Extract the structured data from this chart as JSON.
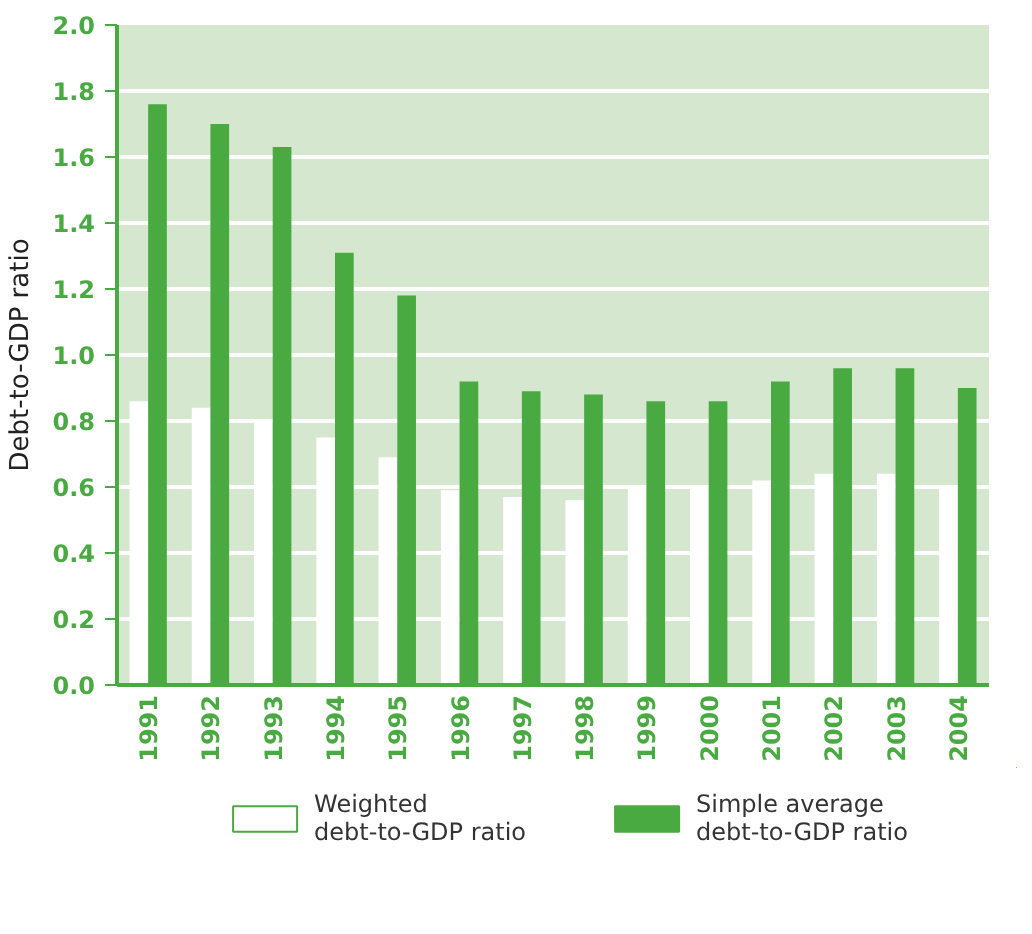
{
  "chart_data": {
    "type": "bar",
    "ylabel": "Debt-to-GDP ratio",
    "categories": [
      "1991",
      "1992",
      "1993",
      "1994",
      "1995",
      "1996",
      "1997",
      "1998",
      "1999",
      "2000",
      "2001",
      "2002",
      "2003",
      "2004"
    ],
    "series": [
      {
        "name": "Weighted debt-to-GDP ratio",
        "color": "#ffffff",
        "values": [
          0.86,
          0.84,
          0.8,
          0.75,
          0.69,
          0.59,
          0.57,
          0.56,
          0.6,
          0.6,
          0.62,
          0.64,
          0.64,
          0.6
        ]
      },
      {
        "name": "Simple average debt-to-GDP ratio",
        "color": "#4aaa42",
        "values": [
          1.76,
          1.7,
          1.63,
          1.31,
          1.18,
          0.92,
          0.89,
          0.88,
          0.86,
          0.86,
          0.92,
          0.96,
          0.96,
          0.9
        ]
      }
    ],
    "ylim": [
      0,
      2.0
    ],
    "yticks": [
      {
        "value": 0,
        "label": "0.0"
      },
      {
        "value": 0.2,
        "label": "0.2"
      },
      {
        "value": 0.4,
        "label": "0.4"
      },
      {
        "value": 0.6,
        "label": "0.6"
      },
      {
        "value": 0.8,
        "label": "0.8"
      },
      {
        "value": 1.0,
        "label": "1.0"
      },
      {
        "value": 1.2,
        "label": "1.2"
      },
      {
        "value": 1.4,
        "label": "1.4"
      },
      {
        "value": 1.6,
        "label": "1.6"
      },
      {
        "value": 1.8,
        "label": "1.8"
      },
      {
        "value": 2.0,
        "label": "2.0"
      }
    ],
    "grid": "y",
    "legend": "bottom"
  }
}
